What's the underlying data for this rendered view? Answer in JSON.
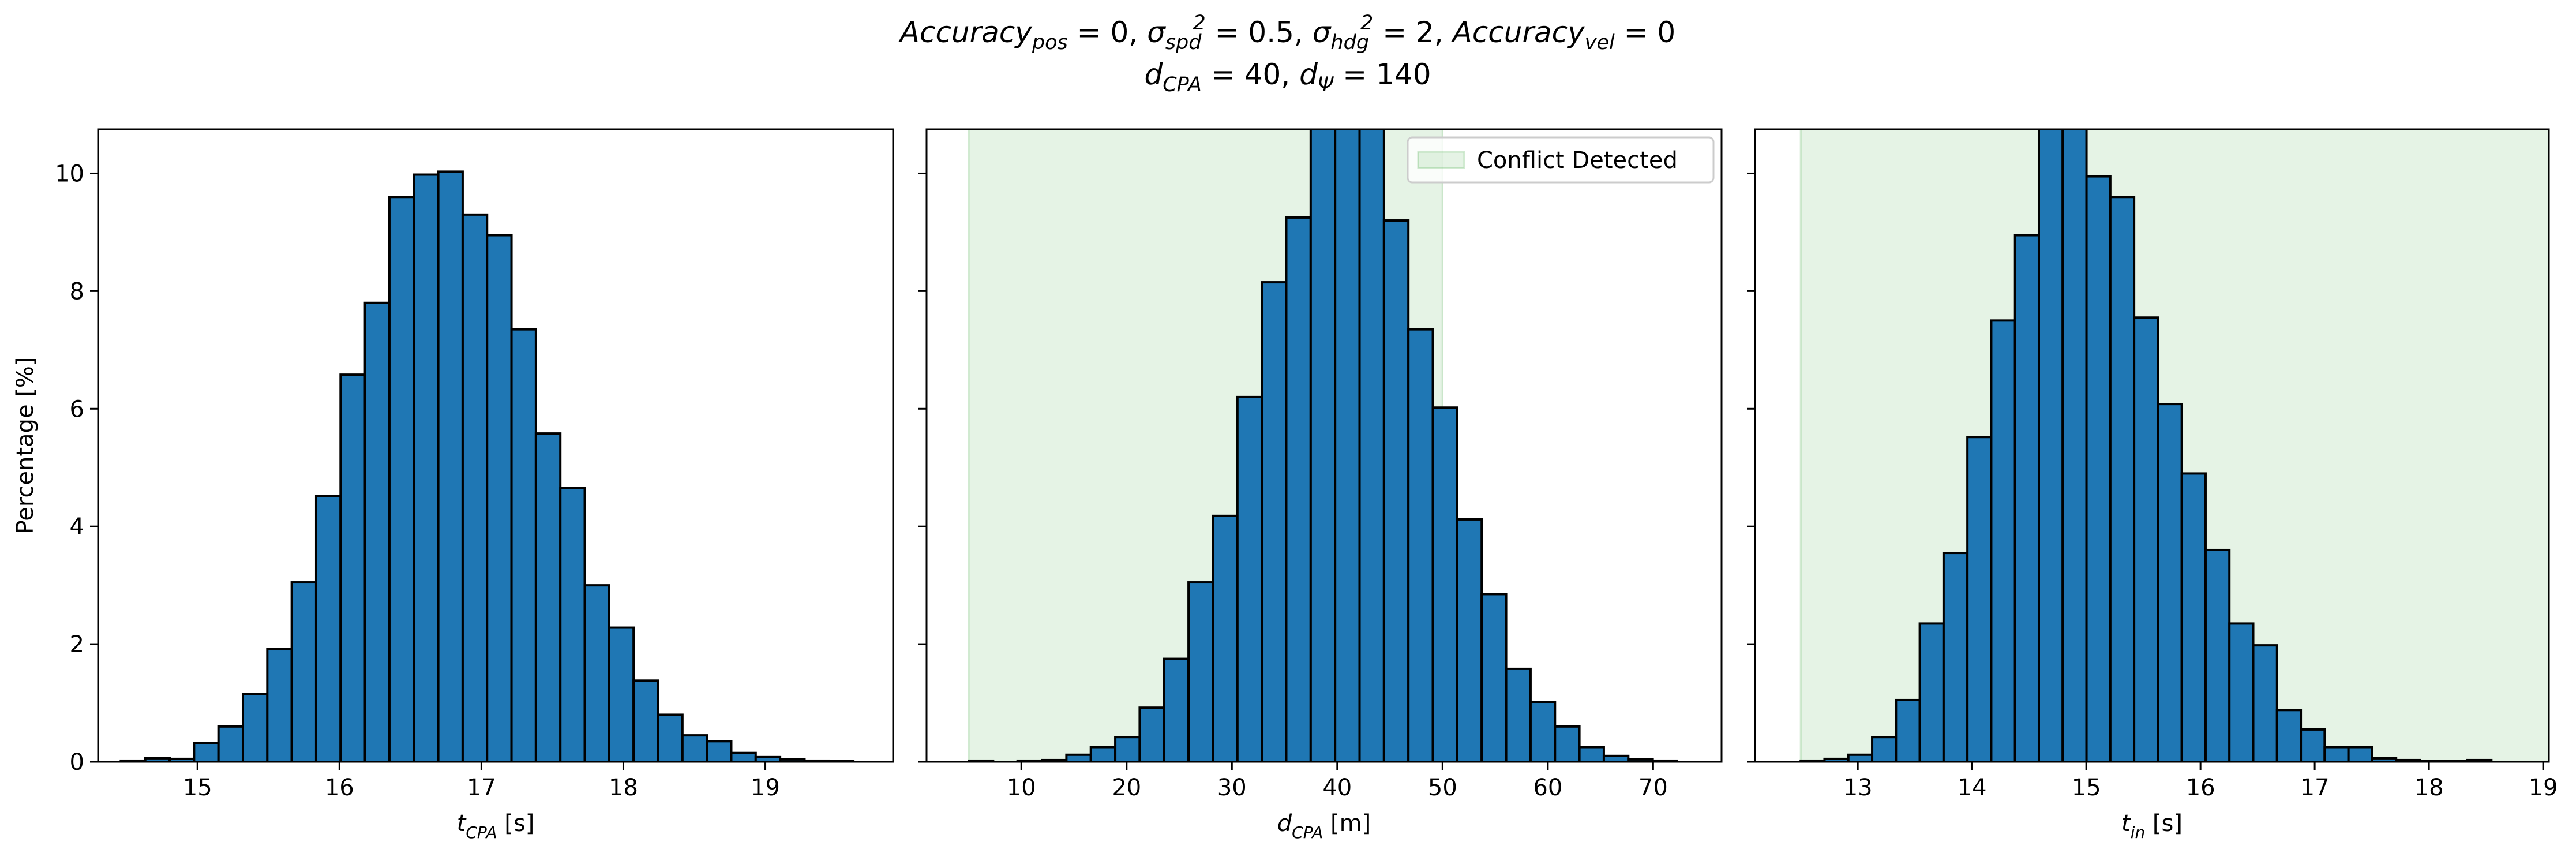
{
  "title": {
    "line1": [
      {
        "t": "Accuracy",
        "s": "i"
      },
      {
        "t": "pos",
        "s": "sub"
      },
      {
        "t": " = 0, "
      },
      {
        "t": "σ",
        "s": "i"
      },
      {
        "t": "spd",
        "s": "sub"
      },
      {
        "t": "2",
        "s": "sup"
      },
      {
        "t": " = 0.5, "
      },
      {
        "t": "σ",
        "s": "i"
      },
      {
        "t": "hdg",
        "s": "sub"
      },
      {
        "t": "2",
        "s": "sup"
      },
      {
        "t": " = 2, "
      },
      {
        "t": "Accuracy",
        "s": "i"
      },
      {
        "t": "vel",
        "s": "sub"
      },
      {
        "t": " = 0"
      }
    ],
    "line2": [
      {
        "t": "d",
        "s": "i"
      },
      {
        "t": "CPA",
        "s": "sub"
      },
      {
        "t": " = 40, "
      },
      {
        "t": "d",
        "s": "i"
      },
      {
        "t": "Ψ",
        "s": "sub"
      },
      {
        "t": " = 140"
      }
    ]
  },
  "colors": {
    "bar": "#1f77b4",
    "conflict": "#2ca02c"
  },
  "chart_data": [
    {
      "type": "bar",
      "name": "t_cpa histogram",
      "xlabel": [
        {
          "t": "t",
          "s": "i"
        },
        {
          "t": "CPA",
          "s": "sub"
        },
        {
          "t": " [s]"
        }
      ],
      "ylabel": "Percentage [%]",
      "xlim": [
        14.3,
        19.9
      ],
      "ylim": [
        0,
        10.75
      ],
      "xticks": [
        15,
        16,
        17,
        18,
        19
      ],
      "yticks": [
        0,
        2,
        4,
        6,
        8,
        10
      ],
      "bin_start": 14.46,
      "bin_width": 0.172,
      "values": [
        0.02,
        0.06,
        0.05,
        0.32,
        0.6,
        1.15,
        1.92,
        3.05,
        4.52,
        6.58,
        7.8,
        9.6,
        9.98,
        10.03,
        9.3,
        8.95,
        7.35,
        5.58,
        4.65,
        3.0,
        2.28,
        1.38,
        0.8,
        0.45,
        0.35,
        0.15,
        0.08,
        0.04,
        0.02,
        0.01
      ],
      "conflict_region": null
    },
    {
      "type": "bar",
      "name": "d_cpa histogram",
      "xlabel": [
        {
          "t": "d",
          "s": "i"
        },
        {
          "t": "CPA",
          "s": "sub"
        },
        {
          "t": " [m]"
        }
      ],
      "ylabel": "",
      "xlim": [
        1.0,
        76.5
      ],
      "ylim": [
        0,
        10.75
      ],
      "xticks": [
        10,
        20,
        30,
        40,
        50,
        60,
        70
      ],
      "yticks": [
        0,
        2,
        4,
        6,
        8,
        10
      ],
      "bin_start": 5.0,
      "bin_width": 2.32,
      "values": [
        0.02,
        0.0,
        0.02,
        0.03,
        0.12,
        0.25,
        0.42,
        0.92,
        1.75,
        3.05,
        4.18,
        6.2,
        8.15,
        9.25,
        10.8,
        10.8,
        10.8,
        9.2,
        7.35,
        6.02,
        4.12,
        2.85,
        1.58,
        1.02,
        0.6,
        0.25,
        0.1,
        0.04,
        0.02
      ],
      "conflict_region": [
        5.0,
        50.0
      ],
      "legend": {
        "label": "Conflict Detected",
        "loc": "upper right"
      }
    },
    {
      "type": "bar",
      "name": "t_in histogram",
      "xlabel": [
        {
          "t": "t",
          "s": "i"
        },
        {
          "t": "in",
          "s": "sub"
        },
        {
          "t": " [s]"
        }
      ],
      "ylabel": "",
      "xlim": [
        12.1,
        19.05
      ],
      "ylim": [
        0,
        10.75
      ],
      "xticks": [
        13,
        14,
        15,
        16,
        17,
        18,
        19
      ],
      "yticks": [
        0,
        2,
        4,
        6,
        8,
        10
      ],
      "bin_start": 12.5,
      "bin_width": 0.2085,
      "values": [
        0.02,
        0.05,
        0.12,
        0.42,
        1.05,
        2.35,
        3.55,
        5.52,
        7.5,
        8.95,
        10.75,
        10.75,
        9.95,
        9.6,
        7.55,
        6.08,
        4.9,
        3.6,
        2.35,
        1.98,
        0.88,
        0.55,
        0.25,
        0.25,
        0.06,
        0.03,
        0.01,
        0.01,
        0.03
      ],
      "conflict_region": [
        12.5,
        30.0
      ]
    }
  ]
}
